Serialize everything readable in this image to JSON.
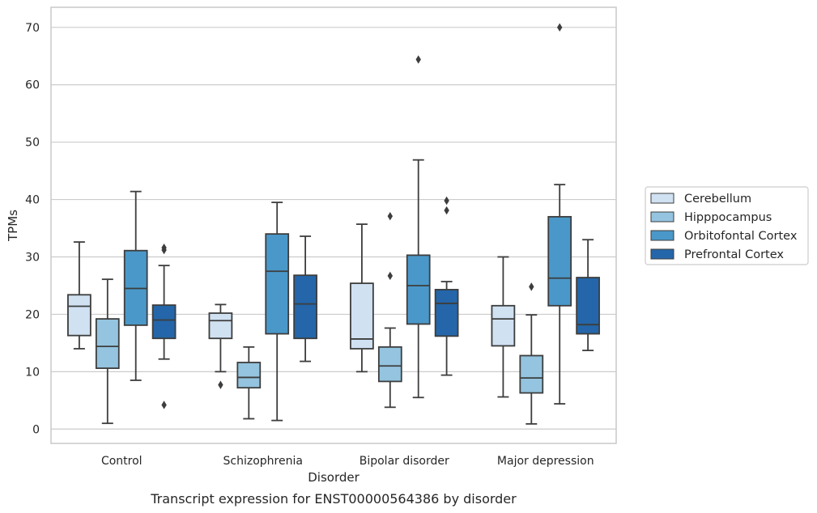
{
  "chart_data": {
    "type": "box",
    "title": "",
    "caption": "Transcript expression for ENST00000564386 by disorder",
    "xlabel": "Disorder",
    "ylabel": "TPMs",
    "ylim": [
      -2.5,
      73.5
    ],
    "yticks": [
      0,
      10,
      20,
      30,
      40,
      50,
      60,
      70
    ],
    "grid": "horizontal",
    "legend_position": "right",
    "categories": [
      "Control",
      "Schizophrenia",
      "Bipolar disorder",
      "Major depression"
    ],
    "series": [
      {
        "name": "Cerebellum",
        "color": "#d0e1f2",
        "boxes": [
          {
            "whisker_low": 14,
            "q1": 16.3,
            "median": 21.4,
            "q3": 23.4,
            "whisker_high": 32.6,
            "outliers": []
          },
          {
            "whisker_low": 10,
            "q1": 15.8,
            "median": 18.9,
            "q3": 20.2,
            "whisker_high": 21.7,
            "outliers": [
              7.7
            ]
          },
          {
            "whisker_low": 10,
            "q1": 14,
            "median": 15.7,
            "q3": 25.4,
            "whisker_high": 35.7,
            "outliers": []
          },
          {
            "whisker_low": 5.6,
            "q1": 14.5,
            "median": 19.2,
            "q3": 21.5,
            "whisker_high": 30,
            "outliers": []
          }
        ]
      },
      {
        "name": "Hipppocampus",
        "color": "#94c4df",
        "boxes": [
          {
            "whisker_low": 1,
            "q1": 10.6,
            "median": 14.4,
            "q3": 19.2,
            "whisker_high": 26.1,
            "outliers": []
          },
          {
            "whisker_low": 1.8,
            "q1": 7.2,
            "median": 9,
            "q3": 11.6,
            "whisker_high": 14.3,
            "outliers": []
          },
          {
            "whisker_low": 3.8,
            "q1": 8.3,
            "median": 11,
            "q3": 14.3,
            "whisker_high": 17.6,
            "outliers": [
              37.1,
              26.7
            ]
          },
          {
            "whisker_low": 0.9,
            "q1": 6.3,
            "median": 8.9,
            "q3": 12.8,
            "whisker_high": 19.9,
            "outliers": [
              24.8
            ]
          }
        ]
      },
      {
        "name": "Orbitofontal Cortex",
        "color": "#4a98c9",
        "boxes": [
          {
            "whisker_low": 8.5,
            "q1": 18.1,
            "median": 24.5,
            "q3": 31.1,
            "whisker_high": 41.4,
            "outliers": []
          },
          {
            "whisker_low": 1.5,
            "q1": 16.6,
            "median": 27.5,
            "q3": 34,
            "whisker_high": 39.5,
            "outliers": []
          },
          {
            "whisker_low": 5.5,
            "q1": 18.3,
            "median": 25,
            "q3": 30.3,
            "whisker_high": 46.9,
            "outliers": [
              64.4
            ]
          },
          {
            "whisker_low": 4.4,
            "q1": 21.5,
            "median": 26.3,
            "q3": 37,
            "whisker_high": 42.6,
            "outliers": [
              70
            ]
          }
        ]
      },
      {
        "name": "Prefrontal Cortex",
        "color": "#2466a9",
        "boxes": [
          {
            "whisker_low": 12.2,
            "q1": 15.8,
            "median": 19,
            "q3": 21.6,
            "whisker_high": 28.5,
            "outliers": [
              31.6,
              31.2,
              4.2
            ]
          },
          {
            "whisker_low": 11.8,
            "q1": 15.8,
            "median": 21.8,
            "q3": 26.8,
            "whisker_high": 33.6,
            "outliers": []
          },
          {
            "whisker_low": 9.4,
            "q1": 16.2,
            "median": 21.9,
            "q3": 24.3,
            "whisker_high": 25.7,
            "outliers": [
              39.8,
              38.1
            ]
          },
          {
            "whisker_low": 13.7,
            "q1": 16.6,
            "median": 18.2,
            "q3": 26.4,
            "whisker_high": 33,
            "outliers": []
          }
        ]
      }
    ]
  }
}
